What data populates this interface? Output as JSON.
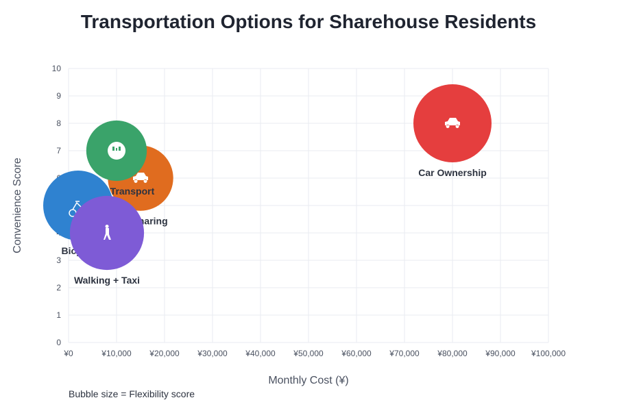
{
  "chart_data": {
    "type": "scatter",
    "subtype": "bubble",
    "title": "Transportation Options for Sharehouse Residents",
    "xlabel": "Monthly Cost (¥)",
    "ylabel": "Convenience Score",
    "xlim": [
      0,
      100000
    ],
    "ylim": [
      0,
      10
    ],
    "xticks": [
      "¥0",
      "¥10,000",
      "¥20,000",
      "¥30,000",
      "¥40,000",
      "¥50,000",
      "¥60,000",
      "¥70,000",
      "¥80,000",
      "¥90,000",
      "¥100,000"
    ],
    "yticks": [
      "0",
      "1",
      "2",
      "3",
      "4",
      "5",
      "6",
      "7",
      "8",
      "9",
      "10"
    ],
    "grid": true,
    "annotation": "Bubble size = Flexibility score",
    "points": [
      {
        "name": "Car Sharing",
        "x": 15000,
        "y": 6,
        "size": 7,
        "color": "#e06c1f",
        "icon": "car-icon"
      },
      {
        "name": "Public Transport",
        "x": 10000,
        "y": 7,
        "size": 6,
        "color": "#3aa36a",
        "icon": "bus-icon"
      },
      {
        "name": "Bicycle",
        "x": 2000,
        "y": 5,
        "size": 8,
        "color": "#2f82d0",
        "icon": "bicycle-icon"
      },
      {
        "name": "Walking + Taxi",
        "x": 8000,
        "y": 4,
        "size": 9,
        "color": "#7e5bd6",
        "icon": "walking-icon"
      },
      {
        "name": "Car Ownership",
        "x": 80000,
        "y": 8,
        "size": 10,
        "color": "#e53e3e",
        "icon": "car-icon"
      }
    ]
  }
}
